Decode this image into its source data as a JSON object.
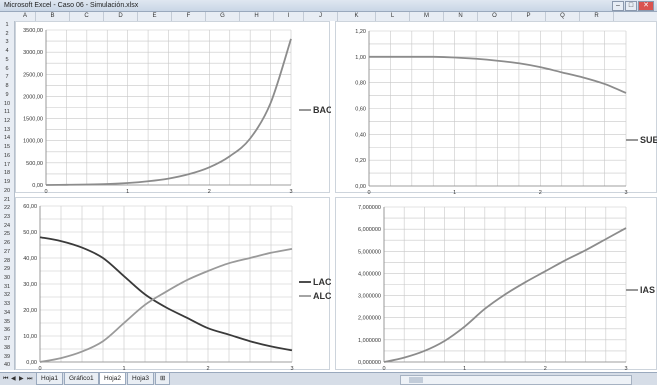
{
  "window": {
    "title": "Microsoft Excel - Caso 06 - Simulación.xlsx",
    "controls": [
      "–",
      "□",
      "✕"
    ]
  },
  "column_headers": [
    "A",
    "B",
    "C",
    "D",
    "E",
    "F",
    "G",
    "H",
    "I",
    "J",
    "K",
    "L",
    "M",
    "N",
    "O",
    "P",
    "Q",
    "R"
  ],
  "row_headers": [
    "1",
    "2",
    "3",
    "4",
    "5",
    "6",
    "7",
    "8",
    "9",
    "10",
    "11",
    "12",
    "13",
    "14",
    "15",
    "16",
    "17",
    "18",
    "19",
    "20",
    "21",
    "22",
    "23",
    "24",
    "25",
    "26",
    "27",
    "28",
    "29",
    "30",
    "31",
    "32",
    "33",
    "34",
    "35",
    "36",
    "37",
    "38",
    "39",
    "40"
  ],
  "tabs": {
    "nav_icons": [
      "first-sheet-icon",
      "prev-sheet-icon",
      "next-sheet-icon",
      "last-sheet-icon"
    ],
    "sheets": [
      "Hoja1",
      "Gráfico1",
      "Hoja2",
      "Hoja3"
    ],
    "active": "Hoja2"
  },
  "chart_data": [
    {
      "type": "line",
      "x": [
        0,
        0.25,
        0.5,
        0.75,
        1,
        1.25,
        1.5,
        1.75,
        2,
        2.25,
        2.5,
        2.75,
        3
      ],
      "series": [
        {
          "name": "BAC",
          "values": [
            0,
            4,
            10,
            22,
            45,
            85,
            145,
            245,
            400,
            650,
            1050,
            1850,
            3300
          ]
        }
      ],
      "xlim": [
        0,
        3
      ],
      "ylim": [
        0,
        3500
      ],
      "yticks": [
        "0,00",
        "500,00",
        "1000,00",
        "1500,00",
        "2000,00",
        "2500,00",
        "3000,00",
        "3500,00"
      ],
      "xticks": [
        "0",
        "1",
        "2",
        "3"
      ],
      "legend": "right",
      "grid": true
    },
    {
      "type": "line",
      "x": [
        0,
        0.25,
        0.5,
        0.75,
        1,
        1.25,
        1.5,
        1.75,
        2,
        2.25,
        2.5,
        2.75,
        3
      ],
      "series": [
        {
          "name": "SUE",
          "values": [
            1.0,
            1.0,
            1.0,
            1.0,
            0.995,
            0.985,
            0.97,
            0.95,
            0.92,
            0.88,
            0.84,
            0.79,
            0.72
          ]
        }
      ],
      "xlim": [
        0,
        3
      ],
      "ylim": [
        0,
        1.2
      ],
      "yticks": [
        "0,00",
        "0,20",
        "0,40",
        "0,60",
        "0,80",
        "1,00",
        "1,20"
      ],
      "xticks": [
        "0",
        "1",
        "2",
        "3"
      ],
      "legend": "right",
      "grid": true
    },
    {
      "type": "line",
      "x": [
        0,
        0.25,
        0.5,
        0.75,
        1,
        1.25,
        1.5,
        1.75,
        2,
        2.25,
        2.5,
        2.75,
        3
      ],
      "series": [
        {
          "name": "LAC",
          "values": [
            48,
            46.5,
            44,
            40,
            33,
            26,
            21,
            17,
            13,
            10.5,
            8,
            6,
            4.5
          ]
        },
        {
          "name": "ALC",
          "values": [
            0,
            1.5,
            4,
            8,
            15,
            22,
            27,
            31.5,
            35,
            38,
            40,
            42,
            43.5
          ]
        }
      ],
      "xlim": [
        0,
        3
      ],
      "ylim": [
        0,
        60
      ],
      "yticks": [
        "0,00",
        "10,00",
        "20,00",
        "30,00",
        "40,00",
        "50,00",
        "60,00"
      ],
      "xticks": [
        "0",
        "1",
        "2",
        "3"
      ],
      "legend": "right",
      "grid": true
    },
    {
      "type": "line",
      "x": [
        0,
        0.25,
        0.5,
        0.75,
        1,
        1.25,
        1.5,
        1.75,
        2,
        2.25,
        2.5,
        2.75,
        3
      ],
      "series": [
        {
          "name": "IAS",
          "values": [
            0,
            0.2,
            0.5,
            0.95,
            1.6,
            2.4,
            3.05,
            3.6,
            4.1,
            4.6,
            5.05,
            5.55,
            6.05
          ]
        }
      ],
      "xlim": [
        0,
        3
      ],
      "ylim": [
        0,
        7
      ],
      "yticks": [
        "0,000000",
        "1,000000",
        "2,000000",
        "3,000000",
        "4,000000",
        "5,000000",
        "6,000000",
        "7,000000"
      ],
      "xticks": [
        "0",
        "1",
        "2",
        "3"
      ],
      "legend": "right",
      "grid": true
    }
  ]
}
